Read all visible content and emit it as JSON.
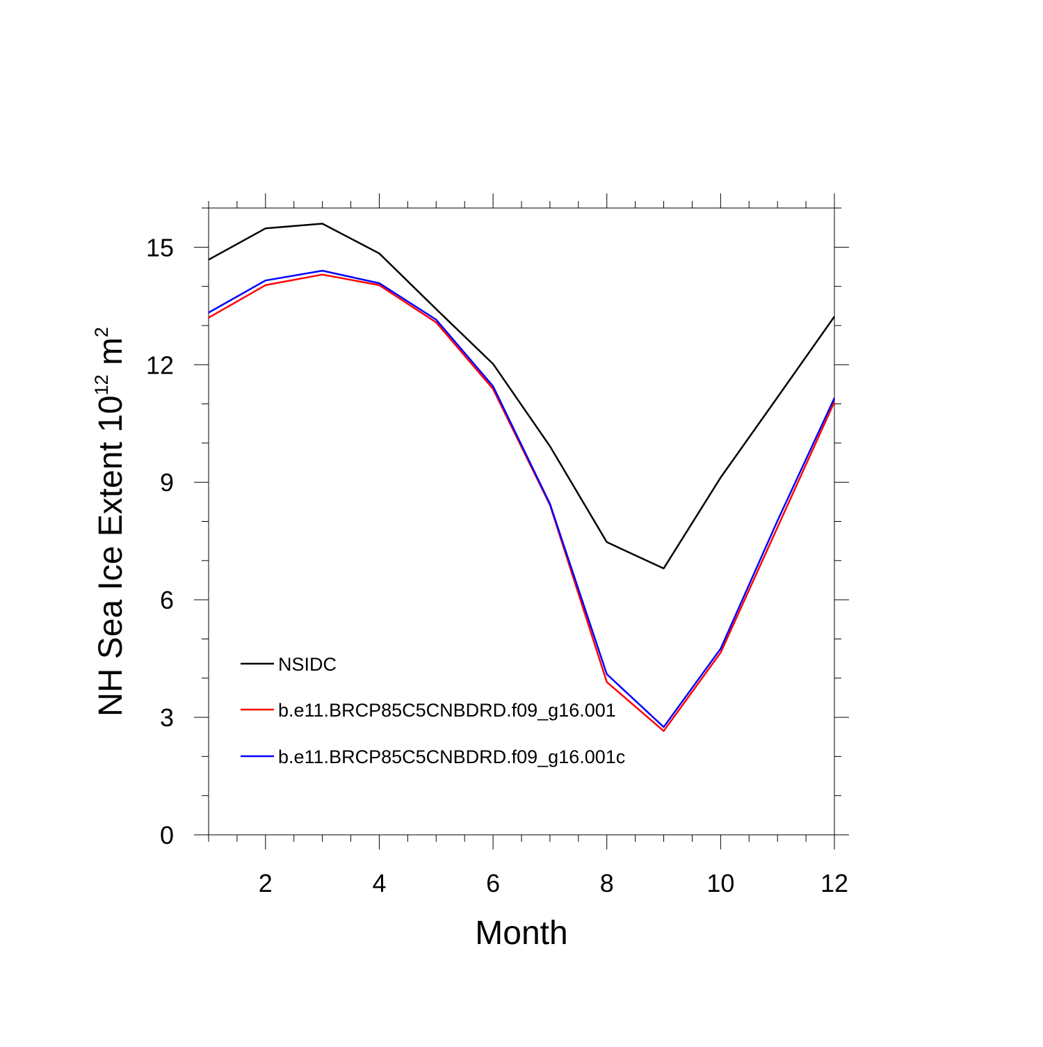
{
  "chart_data": {
    "type": "line",
    "title": "",
    "xlabel": "Month",
    "ylabel": {
      "main": "NH Sea Ice Extent 10",
      "exponent": "12",
      "unit": " m",
      "unit_exponent": "2"
    },
    "xlim": [
      1,
      12
    ],
    "ylim": [
      0,
      16
    ],
    "xticks": [
      2,
      4,
      6,
      8,
      10,
      12
    ],
    "yticks": [
      0,
      3,
      6,
      9,
      12,
      15
    ],
    "x": [
      1,
      2,
      3,
      4,
      5,
      6,
      7,
      8,
      9,
      10,
      11,
      12
    ],
    "series": [
      {
        "name": "NSIDC",
        "color": "#000000",
        "values": [
          14.68,
          15.48,
          15.6,
          14.84,
          13.42,
          12.02,
          9.92,
          7.47,
          6.8,
          9.12,
          11.17,
          13.23
        ]
      },
      {
        "name": "b.e11.BRCP85C5CNBDRD.f09_g16.001",
        "color": "#ff0000",
        "values": [
          13.2,
          14.03,
          14.3,
          14.03,
          13.08,
          11.38,
          8.42,
          3.9,
          2.65,
          4.65,
          7.85,
          11.05
        ]
      },
      {
        "name": "b.e11.BRCP85C5CNBDRD.f09_g16.001c",
        "color": "#0000ff",
        "values": [
          13.33,
          14.15,
          14.4,
          14.08,
          13.15,
          11.45,
          8.45,
          4.1,
          2.75,
          4.75,
          8.02,
          11.15
        ]
      }
    ],
    "legend_position": "lower-left"
  }
}
